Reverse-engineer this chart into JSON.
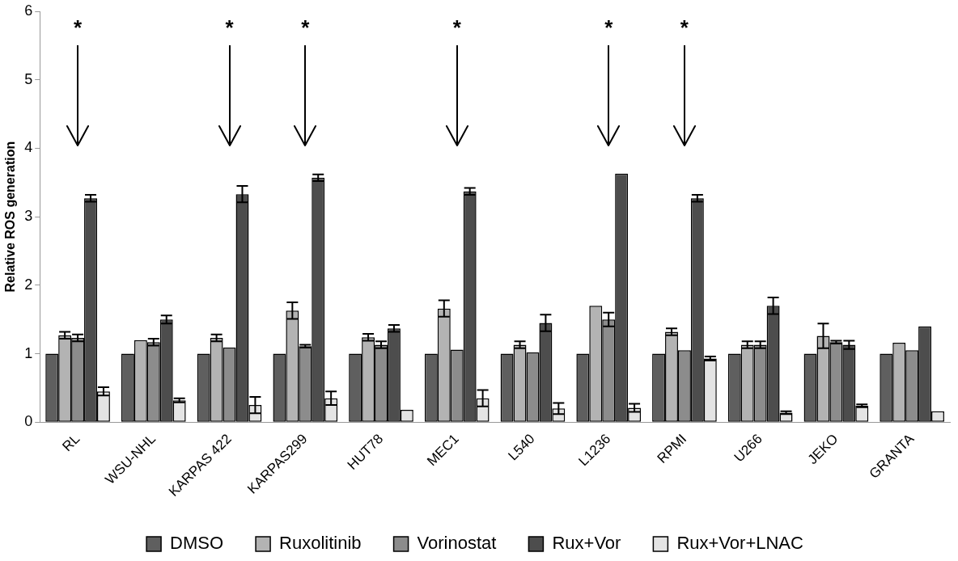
{
  "chart_data": {
    "type": "bar",
    "ylabel": "Relative ROS generation",
    "categories": [
      "RL",
      "WSU-NHL",
      "KARPAS 422",
      "KARPAS299",
      "HUT78",
      "MEC1",
      "L540",
      "L1236",
      "RPMI",
      "U266",
      "JEKO",
      "GRANTA"
    ],
    "series": [
      {
        "name": "DMSO",
        "color": "#5f5f5f",
        "values": [
          1,
          1,
          1,
          1,
          1,
          1,
          1,
          1,
          1,
          1,
          1,
          1
        ]
      },
      {
        "name": "Ruxolitinib",
        "color": "#b3b3b3",
        "values": [
          1.27,
          1.2,
          1.23,
          1.63,
          1.24,
          1.66,
          1.13,
          1.7,
          1.32,
          1.13,
          1.26,
          1.16
        ],
        "errors": [
          0.05,
          null,
          0.05,
          0.12,
          0.05,
          0.12,
          0.05,
          null,
          0.05,
          0.05,
          0.18,
          null
        ]
      },
      {
        "name": "Vorinostat",
        "color": "#8c8c8c",
        "values": [
          1.23,
          1.17,
          1.09,
          1.11,
          1.13,
          1.06,
          1.02,
          1.5,
          1.05,
          1.13,
          1.17,
          1.05
        ],
        "errors": [
          0.05,
          0.05,
          null,
          0.02,
          0.05,
          null,
          null,
          0.1,
          null,
          0.05,
          0.02,
          null
        ]
      },
      {
        "name": "Rux+Vor",
        "color": "#4d4d4d",
        "values": [
          3.27,
          1.5,
          3.33,
          3.57,
          1.37,
          3.37,
          1.45,
          3.63,
          3.27,
          1.7,
          1.13,
          1.4
        ],
        "errors": [
          0.05,
          0.06,
          0.12,
          0.05,
          0.05,
          0.05,
          0.12,
          null,
          0.05,
          0.12,
          0.06,
          null
        ]
      },
      {
        "name": "Rux+Vor+LNAC",
        "color": "#e4e4e4",
        "values": [
          0.45,
          0.32,
          0.25,
          0.35,
          0.18,
          0.35,
          0.2,
          0.21,
          0.93,
          0.14,
          0.24,
          0.16
        ],
        "errors": [
          0.06,
          0.03,
          0.12,
          0.1,
          null,
          0.12,
          0.08,
          0.06,
          0.03,
          0.02,
          0.02,
          null
        ]
      }
    ],
    "ylim": [
      0,
      6
    ],
    "yticks": [
      0,
      1,
      2,
      3,
      4,
      5,
      6
    ],
    "grid": false,
    "legend": "bottom",
    "annotations": [
      {
        "text": "*",
        "x": "RL"
      },
      {
        "text": "*",
        "x": "KARPAS 422"
      },
      {
        "text": "*",
        "x": "KARPAS299"
      },
      {
        "text": "*",
        "x": "MEC1"
      },
      {
        "text": "*",
        "x": "L1236"
      },
      {
        "text": "*",
        "x": "RPMI"
      }
    ]
  }
}
